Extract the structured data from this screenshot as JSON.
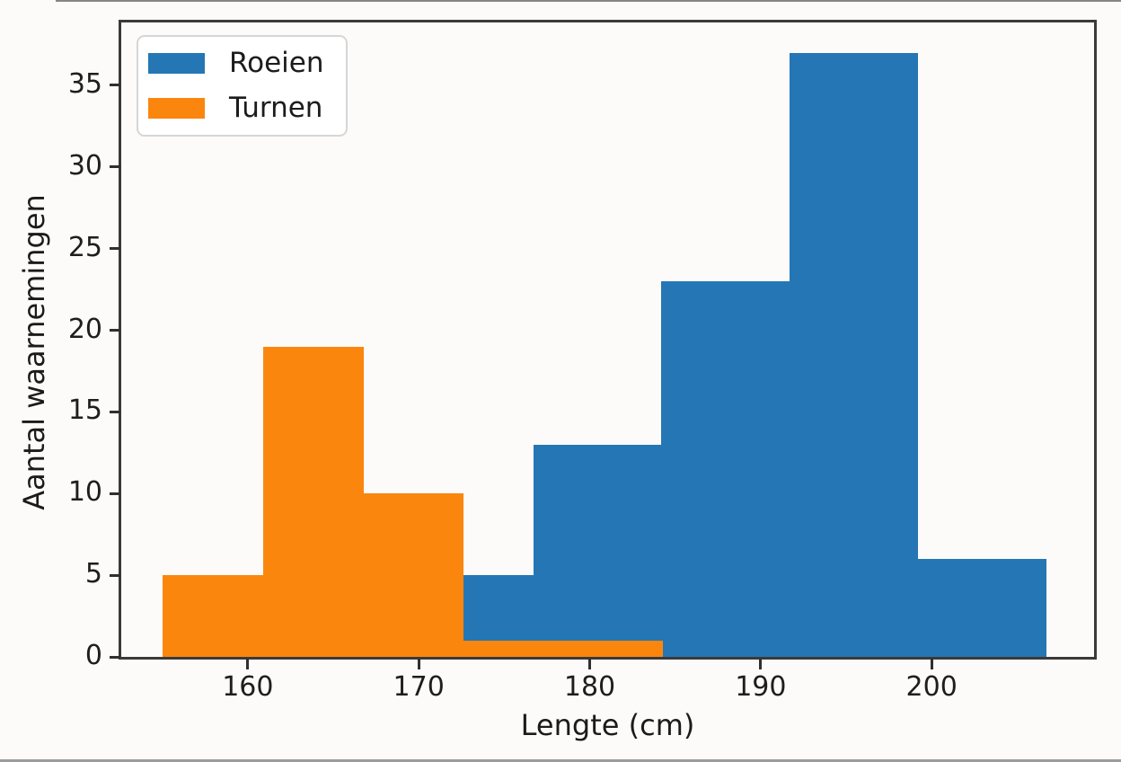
{
  "figure": {
    "xlabel": "Lengte (cm)",
    "ylabel": "Aantal waarnemingen",
    "background_color": "#fcfbf9",
    "spine_color": "#3a3a3a",
    "text_color": "#1e1e1e"
  },
  "chart_data": {
    "type": "histogram",
    "title": "",
    "xlabel": "Lengte (cm)",
    "ylabel": "Aantal waarnemingen",
    "xlim": [
      152.6,
      209.5
    ],
    "ylim": [
      0,
      38.85
    ],
    "x_ticks": [
      160,
      170,
      180,
      190,
      200
    ],
    "y_ticks": [
      0,
      5,
      10,
      15,
      20,
      25,
      30,
      35
    ],
    "grid": false,
    "legend_position": "upper left",
    "series": [
      {
        "name": "Roeien",
        "color": "#2477b4",
        "bin_edges": [
          169.2,
          176.7,
          184.2,
          191.7,
          199.2,
          206.7
        ],
        "counts": [
          5,
          13,
          23,
          37,
          6
        ],
        "z_order": 1
      },
      {
        "name": "Turnen",
        "color": "#fb860e",
        "bin_edges": [
          155.0,
          160.9,
          166.8,
          172.6,
          178.4,
          184.3
        ],
        "counts": [
          5,
          19,
          10,
          1,
          1
        ],
        "z_order": 2
      }
    ]
  }
}
